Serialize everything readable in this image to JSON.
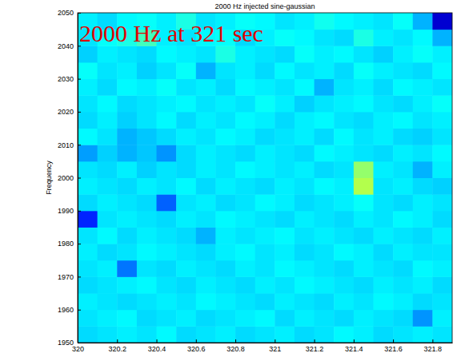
{
  "chart_data": {
    "type": "heatmap",
    "title": "2000 Hz injected sine-gaussian",
    "y_label": "Frequency",
    "annotation": "2000 Hz at 321 sec",
    "x_edges": [
      320.0,
      320.1,
      320.2,
      320.3,
      320.4,
      320.5,
      320.6,
      320.7,
      320.8,
      320.9,
      321.0,
      321.1,
      321.2,
      321.3,
      321.4,
      321.5,
      321.6,
      321.7,
      321.8,
      321.9
    ],
    "y_edges": [
      1950,
      1955,
      1960,
      1965,
      1970,
      1975,
      1980,
      1985,
      1990,
      1995,
      2000,
      2005,
      2010,
      2015,
      2020,
      2025,
      2030,
      2035,
      2040,
      2045,
      2050
    ],
    "cells": [
      [
        0.34,
        0.35,
        0.36,
        0.35,
        0.37,
        0.34,
        0.35,
        0.36,
        0.34,
        0.35,
        0.36,
        0.34,
        0.35,
        0.37,
        0.36,
        0.34,
        0.35,
        0.36,
        0.35
      ],
      [
        0.35,
        0.36,
        0.37,
        0.34,
        0.35,
        0.36,
        0.34,
        0.35,
        0.36,
        0.37,
        0.34,
        0.36,
        0.35,
        0.34,
        0.36,
        0.35,
        0.34,
        0.27,
        0.36
      ],
      [
        0.36,
        0.35,
        0.34,
        0.35,
        0.36,
        0.35,
        0.37,
        0.36,
        0.35,
        0.34,
        0.36,
        0.35,
        0.34,
        0.36,
        0.35,
        0.37,
        0.36,
        0.34,
        0.35
      ],
      [
        0.34,
        0.35,
        0.36,
        0.37,
        0.35,
        0.34,
        0.36,
        0.35,
        0.34,
        0.36,
        0.35,
        0.37,
        0.36,
        0.35,
        0.34,
        0.36,
        0.35,
        0.36,
        0.34
      ],
      [
        0.35,
        0.36,
        0.24,
        0.35,
        0.34,
        0.36,
        0.35,
        0.34,
        0.36,
        0.35,
        0.37,
        0.36,
        0.35,
        0.34,
        0.36,
        0.35,
        0.34,
        0.37,
        0.36
      ],
      [
        0.36,
        0.34,
        0.35,
        0.37,
        0.36,
        0.35,
        0.34,
        0.36,
        0.37,
        0.35,
        0.36,
        0.34,
        0.35,
        0.37,
        0.36,
        0.34,
        0.36,
        0.35,
        0.35
      ],
      [
        0.35,
        0.37,
        0.34,
        0.36,
        0.35,
        0.34,
        0.3,
        0.36,
        0.35,
        0.36,
        0.37,
        0.35,
        0.36,
        0.35,
        0.34,
        0.36,
        0.35,
        0.34,
        0.36
      ],
      [
        0.16,
        0.35,
        0.36,
        0.35,
        0.34,
        0.36,
        0.35,
        0.37,
        0.36,
        0.35,
        0.34,
        0.36,
        0.35,
        0.34,
        0.36,
        0.35,
        0.37,
        0.36,
        0.34
      ],
      [
        0.34,
        0.36,
        0.35,
        0.34,
        0.22,
        0.35,
        0.36,
        0.34,
        0.35,
        0.37,
        0.36,
        0.34,
        0.35,
        0.36,
        0.38,
        0.35,
        0.34,
        0.36,
        0.35
      ],
      [
        0.36,
        0.35,
        0.34,
        0.36,
        0.35,
        0.37,
        0.34,
        0.36,
        0.35,
        0.34,
        0.36,
        0.35,
        0.37,
        0.36,
        0.55,
        0.35,
        0.36,
        0.34,
        0.33
      ],
      [
        0.35,
        0.34,
        0.36,
        0.33,
        0.35,
        0.34,
        0.36,
        0.35,
        0.37,
        0.36,
        0.35,
        0.36,
        0.34,
        0.35,
        0.52,
        0.36,
        0.35,
        0.3,
        0.36
      ],
      [
        0.28,
        0.33,
        0.3,
        0.32,
        0.27,
        0.34,
        0.36,
        0.35,
        0.34,
        0.36,
        0.35,
        0.34,
        0.37,
        0.36,
        0.35,
        0.34,
        0.36,
        0.35,
        0.37
      ],
      [
        0.37,
        0.35,
        0.3,
        0.32,
        0.34,
        0.36,
        0.35,
        0.37,
        0.36,
        0.34,
        0.35,
        0.36,
        0.34,
        0.37,
        0.35,
        0.36,
        0.34,
        0.33,
        0.35
      ],
      [
        0.34,
        0.36,
        0.33,
        0.35,
        0.37,
        0.34,
        0.36,
        0.35,
        0.37,
        0.36,
        0.34,
        0.36,
        0.37,
        0.35,
        0.34,
        0.36,
        0.37,
        0.35,
        0.36
      ],
      [
        0.35,
        0.37,
        0.34,
        0.35,
        0.36,
        0.37,
        0.35,
        0.36,
        0.35,
        0.38,
        0.36,
        0.33,
        0.35,
        0.36,
        0.37,
        0.35,
        0.34,
        0.36,
        0.38
      ],
      [
        0.36,
        0.34,
        0.37,
        0.36,
        0.38,
        0.35,
        0.36,
        0.34,
        0.37,
        0.36,
        0.35,
        0.37,
        0.3,
        0.35,
        0.36,
        0.34,
        0.37,
        0.36,
        0.35
      ],
      [
        0.38,
        0.35,
        0.36,
        0.33,
        0.35,
        0.38,
        0.3,
        0.35,
        0.36,
        0.34,
        0.37,
        0.35,
        0.36,
        0.34,
        0.38,
        0.36,
        0.35,
        0.34,
        0.37
      ],
      [
        0.33,
        0.36,
        0.35,
        0.34,
        0.37,
        0.36,
        0.35,
        0.4,
        0.36,
        0.35,
        0.34,
        0.38,
        0.36,
        0.37,
        0.35,
        0.33,
        0.36,
        0.38,
        0.36
      ],
      [
        0.35,
        0.38,
        0.4,
        0.44,
        0.36,
        0.35,
        0.37,
        0.38,
        0.34,
        0.36,
        0.38,
        0.37,
        0.35,
        0.34,
        0.4,
        0.36,
        0.35,
        0.37,
        0.3
      ],
      [
        0.36,
        0.34,
        0.37,
        0.38,
        0.36,
        0.4,
        0.35,
        0.36,
        0.38,
        0.37,
        0.35,
        0.36,
        0.39,
        0.37,
        0.36,
        0.35,
        0.38,
        0.3,
        0.08
      ]
    ],
    "color_range": [
      0,
      1
    ],
    "xlim": [
      320,
      321.9
    ],
    "ylim": [
      1950,
      2050
    ],
    "xticks": [
      320,
      320.2,
      320.4,
      320.6,
      320.8,
      321,
      321.2,
      321.4,
      321.6,
      321.8
    ],
    "yticks": [
      1950,
      1960,
      1970,
      1980,
      1990,
      2000,
      2010,
      2020,
      2030,
      2040,
      2050
    ]
  }
}
